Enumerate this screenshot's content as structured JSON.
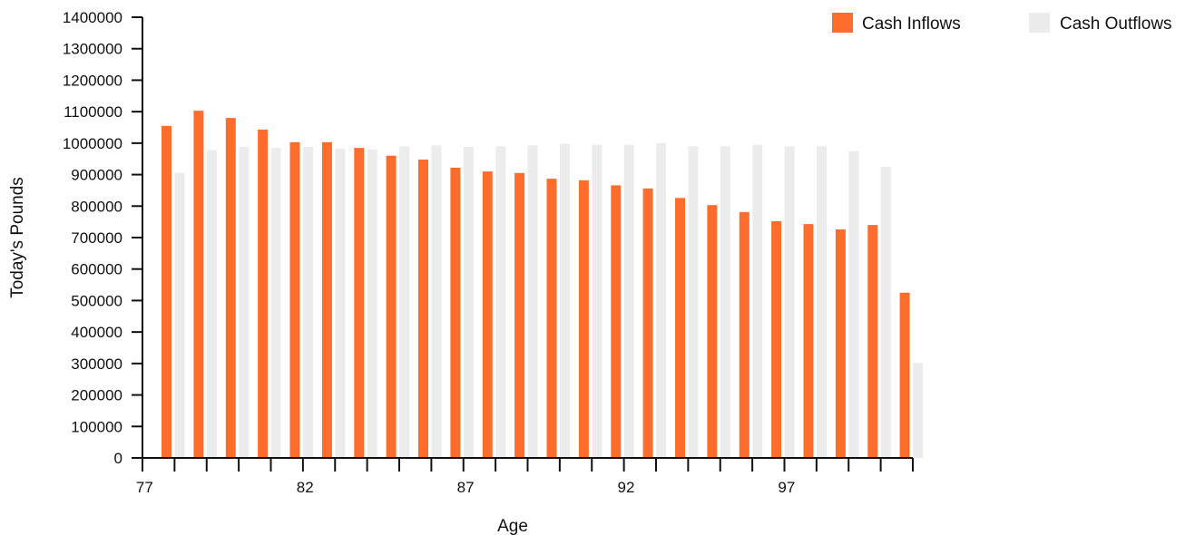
{
  "chart_data": {
    "type": "bar",
    "title": "",
    "xlabel": "Age",
    "ylabel": "Today's Pounds",
    "categories": [
      77,
      78,
      79,
      80,
      81,
      82,
      83,
      84,
      85,
      86,
      87,
      88,
      89,
      90,
      91,
      92,
      93,
      94,
      95,
      96,
      97,
      98,
      99,
      100
    ],
    "x_tick_labels": [
      "77",
      "82",
      "87",
      "92",
      "97"
    ],
    "y_tick_labels": [
      "0",
      "100000",
      "200000",
      "300000",
      "400000",
      "500000",
      "600000",
      "700000",
      "800000",
      "900000",
      "1000000",
      "1100000",
      "1200000",
      "1300000",
      "1400000"
    ],
    "ylim": [
      0,
      1400000
    ],
    "grid": false,
    "legend_position": "top-right",
    "series": [
      {
        "name": "Cash Inflows",
        "color": "#ff6d2d",
        "values": [
          1055000,
          1103000,
          1080000,
          1043000,
          1003000,
          1003000,
          985000,
          960000,
          948000,
          922000,
          910000,
          905000,
          887000,
          882000,
          866000,
          856000,
          826000,
          803000,
          781000,
          752000,
          743000,
          726000,
          740000,
          525000
        ]
      },
      {
        "name": "Cash Outflows",
        "color": "#ececec",
        "values": [
          905000,
          978000,
          988000,
          985000,
          988000,
          983000,
          980000,
          990000,
          993000,
          988000,
          990000,
          993000,
          998000,
          995000,
          995000,
          1000000,
          990000,
          990000,
          995000,
          990000,
          990000,
          975000,
          925000,
          302000
        ]
      }
    ]
  }
}
